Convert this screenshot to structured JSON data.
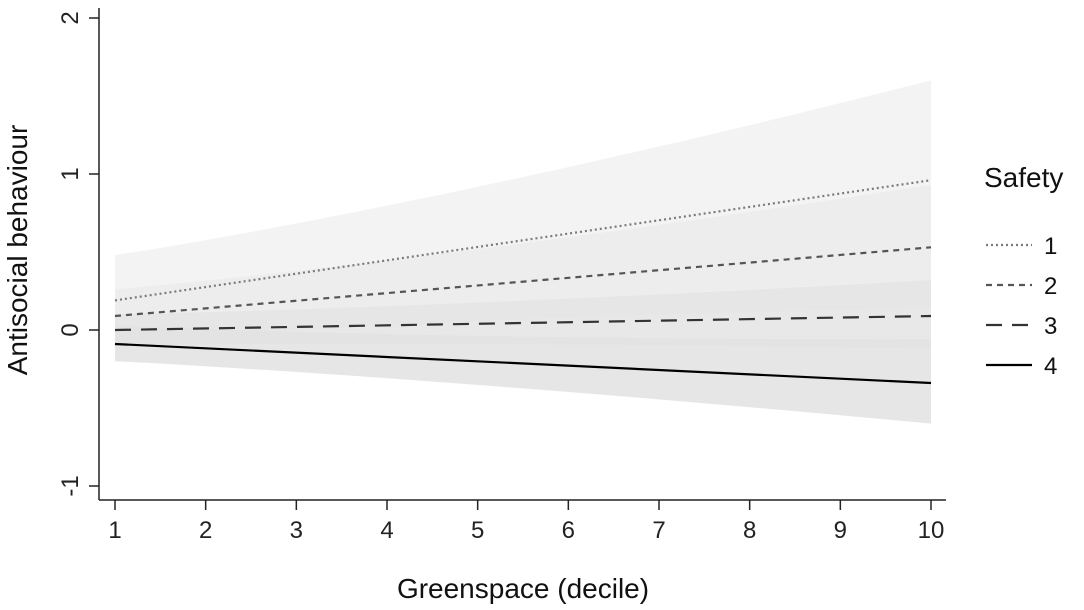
{
  "chart_data": {
    "type": "line",
    "xlabel": "Greenspace (decile)",
    "ylabel": "Antisocial behaviour",
    "xlim": [
      1,
      10
    ],
    "ylim": [
      -1,
      2
    ],
    "xticks": [
      1,
      2,
      3,
      4,
      5,
      6,
      7,
      8,
      9,
      10
    ],
    "yticks": [
      -1,
      0,
      1,
      2
    ],
    "grid": false,
    "legend": {
      "title": "Safety",
      "position": "right"
    },
    "x": [
      1,
      10
    ],
    "series": [
      {
        "name": "1",
        "style": "dotted",
        "color": "#7a7a7a",
        "values": [
          0.19,
          0.96
        ],
        "ci_lower": [
          -0.1,
          0.32
        ],
        "ci_upper": [
          0.48,
          1.6
        ],
        "band_color": "#f1f1f1"
      },
      {
        "name": "2",
        "style": "short-dash",
        "color": "#555555",
        "values": [
          0.09,
          0.53
        ],
        "ci_lower": [
          -0.08,
          0.14
        ],
        "ci_upper": [
          0.26,
          0.93
        ],
        "band_color": "#ebebeb"
      },
      {
        "name": "3",
        "style": "long-dash",
        "color": "#333333",
        "values": [
          0.0,
          0.09
        ],
        "ci_lower": [
          -0.1,
          -0.12
        ],
        "ci_upper": [
          0.1,
          0.32
        ],
        "band_color": "#e4e4e4"
      },
      {
        "name": "4",
        "style": "solid",
        "color": "#000000",
        "values": [
          -0.09,
          -0.34
        ],
        "ci_lower": [
          -0.2,
          -0.6
        ],
        "ci_upper": [
          0.03,
          -0.06
        ],
        "band_color": "#e2e2e2"
      }
    ]
  }
}
